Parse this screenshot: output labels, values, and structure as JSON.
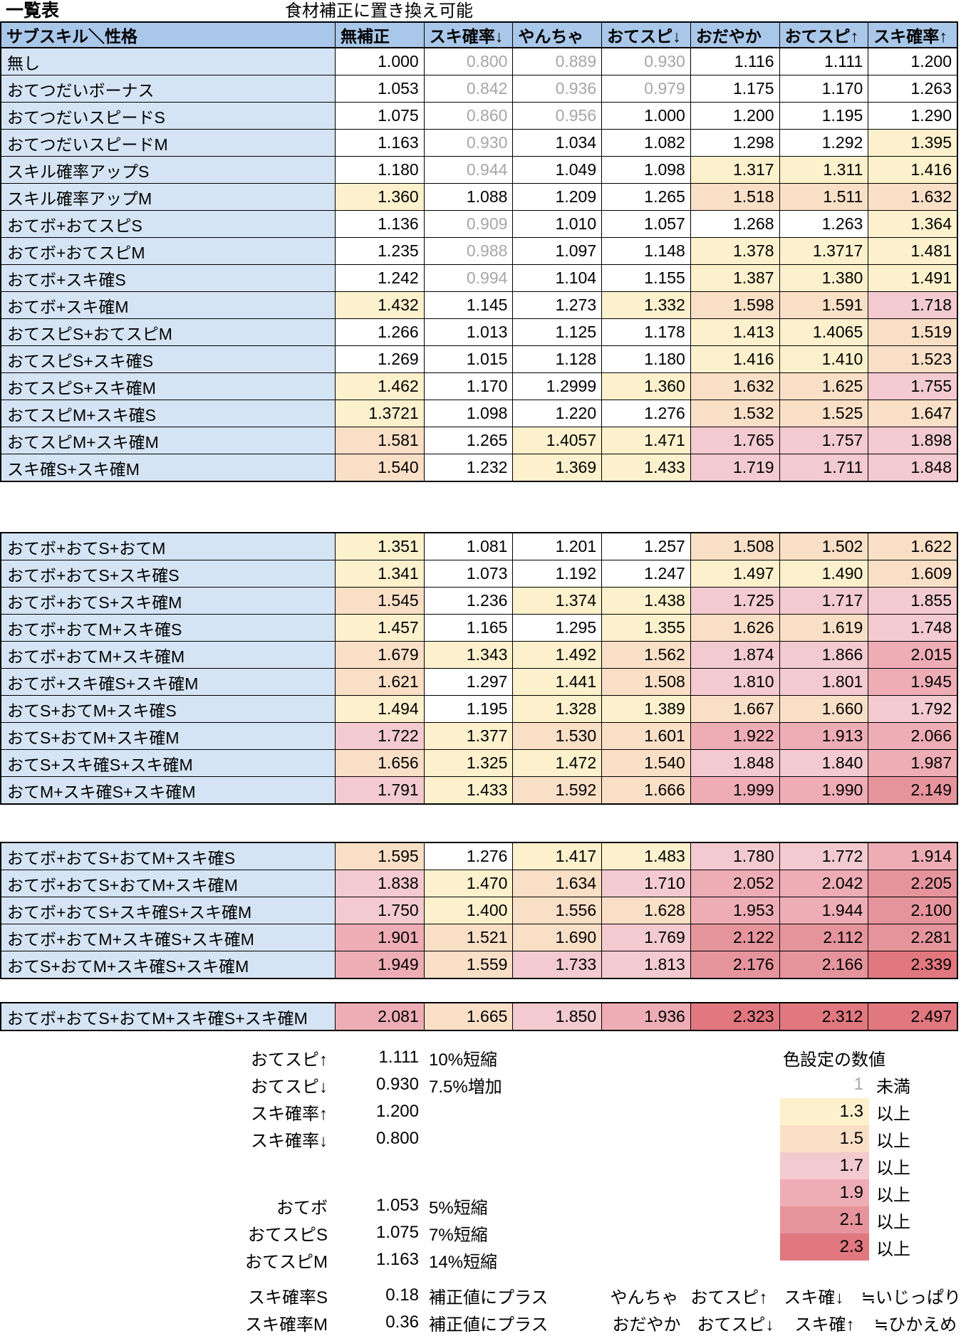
{
  "title": "一覧表",
  "subtitle": "食材補正に置き換え可能",
  "colors": {
    "header_bg": "#A9C7E9",
    "label_bg": "#D5E4F4",
    "below_one_text": "#A6A6A6",
    "ge13": "#FCF1CC",
    "ge15": "#F9DFC6",
    "ge17": "#F3CACF",
    "ge19": "#EEADB5",
    "ge21": "#E6949C",
    "ge23": "#E1777F"
  },
  "thresholds": {
    "gray_below": 1,
    "bands": [
      {
        "min": 2.3,
        "color": "ge23"
      },
      {
        "min": 2.1,
        "color": "ge21"
      },
      {
        "min": 1.9,
        "color": "ge19"
      },
      {
        "min": 1.7,
        "color": "ge17"
      },
      {
        "min": 1.5,
        "color": "ge15"
      },
      {
        "min": 1.3,
        "color": "ge13"
      }
    ]
  },
  "table": {
    "header": [
      "サブスキル＼性格",
      "無補正",
      "スキ確率↓",
      "やんちゃ",
      "おてスピ↓",
      "おだやか",
      "おてスピ↑",
      "スキ確率↑"
    ],
    "blocks": [
      [
        {
          "label": "無し",
          "values": [
            "1.000",
            "0.800",
            "0.889",
            "0.930",
            "1.116",
            "1.111",
            "1.200"
          ]
        },
        {
          "label": "おてつだいボーナス",
          "values": [
            "1.053",
            "0.842",
            "0.936",
            "0.979",
            "1.175",
            "1.170",
            "1.263"
          ]
        },
        {
          "label": "おてつだいスピードS",
          "values": [
            "1.075",
            "0.860",
            "0.956",
            "1.000",
            "1.200",
            "1.195",
            "1.290"
          ]
        },
        {
          "label": "おてつだいスピードM",
          "values": [
            "1.163",
            "0.930",
            "1.034",
            "1.082",
            "1.298",
            "1.292",
            "1.395"
          ]
        },
        {
          "label": "スキル確率アップS",
          "values": [
            "1.180",
            "0.944",
            "1.049",
            "1.098",
            "1.317",
            "1.311",
            "1.416"
          ]
        },
        {
          "label": "スキル確率アップM",
          "values": [
            "1.360",
            "1.088",
            "1.209",
            "1.265",
            "1.518",
            "1.511",
            "1.632"
          ]
        },
        {
          "label": "おてボ+おてスピS",
          "values": [
            "1.136",
            "0.909",
            "1.010",
            "1.057",
            "1.268",
            "1.263",
            "1.364"
          ]
        },
        {
          "label": "おてボ+おてスピM",
          "values": [
            "1.235",
            "0.988",
            "1.097",
            "1.148",
            "1.378",
            "1.3717",
            "1.481"
          ]
        },
        {
          "label": "おてボ+スキ確S",
          "values": [
            "1.242",
            "0.994",
            "1.104",
            "1.155",
            "1.387",
            "1.380",
            "1.491"
          ]
        },
        {
          "label": "おてボ+スキ確M",
          "values": [
            "1.432",
            "1.145",
            "1.273",
            "1.332",
            "1.598",
            "1.591",
            "1.718"
          ]
        },
        {
          "label": "おてスピS+おてスピM",
          "values": [
            "1.266",
            "1.013",
            "1.125",
            "1.178",
            "1.413",
            "1.4065",
            "1.519"
          ]
        },
        {
          "label": "おてスピS+スキ確S",
          "values": [
            "1.269",
            "1.015",
            "1.128",
            "1.180",
            "1.416",
            "1.410",
            "1.523"
          ]
        },
        {
          "label": "おてスピS+スキ確M",
          "values": [
            "1.462",
            "1.170",
            "1.2999",
            "1.360",
            "1.632",
            "1.625",
            "1.755"
          ]
        },
        {
          "label": "おてスピM+スキ確S",
          "values": [
            "1.3721",
            "1.098",
            "1.220",
            "1.276",
            "1.532",
            "1.525",
            "1.647"
          ]
        },
        {
          "label": "おてスピM+スキ確M",
          "values": [
            "1.581",
            "1.265",
            "1.4057",
            "1.471",
            "1.765",
            "1.757",
            "1.898"
          ]
        },
        {
          "label": "スキ確S+スキ確M",
          "values": [
            "1.540",
            "1.232",
            "1.369",
            "1.433",
            "1.719",
            "1.711",
            "1.848"
          ]
        }
      ],
      [
        {
          "label": "おてボ+おてS+おてM",
          "values": [
            "1.351",
            "1.081",
            "1.201",
            "1.257",
            "1.508",
            "1.502",
            "1.622"
          ]
        },
        {
          "label": "おてボ+おてS+スキ確S",
          "values": [
            "1.341",
            "1.073",
            "1.192",
            "1.247",
            "1.497",
            "1.490",
            "1.609"
          ]
        },
        {
          "label": "おてボ+おてS+スキ確M",
          "values": [
            "1.545",
            "1.236",
            "1.374",
            "1.438",
            "1.725",
            "1.717",
            "1.855"
          ]
        },
        {
          "label": "おてボ+おてM+スキ確S",
          "values": [
            "1.457",
            "1.165",
            "1.295",
            "1.355",
            "1.626",
            "1.619",
            "1.748"
          ]
        },
        {
          "label": "おてボ+おてM+スキ確M",
          "values": [
            "1.679",
            "1.343",
            "1.492",
            "1.562",
            "1.874",
            "1.866",
            "2.015"
          ]
        },
        {
          "label": "おてボ+スキ確S+スキ確M",
          "values": [
            "1.621",
            "1.297",
            "1.441",
            "1.508",
            "1.810",
            "1.801",
            "1.945"
          ]
        },
        {
          "label": "おてS+おてM+スキ確S",
          "values": [
            "1.494",
            "1.195",
            "1.328",
            "1.389",
            "1.667",
            "1.660",
            "1.792"
          ]
        },
        {
          "label": "おてS+おてM+スキ確M",
          "values": [
            "1.722",
            "1.377",
            "1.530",
            "1.601",
            "1.922",
            "1.913",
            "2.066"
          ]
        },
        {
          "label": "おてS+スキ確S+スキ確M",
          "values": [
            "1.656",
            "1.325",
            "1.472",
            "1.540",
            "1.848",
            "1.840",
            "1.987"
          ]
        },
        {
          "label": "おてM+スキ確S+スキ確M",
          "values": [
            "1.791",
            "1.433",
            "1.592",
            "1.666",
            "1.999",
            "1.990",
            "2.149"
          ]
        }
      ],
      [
        {
          "label": "おてボ+おてS+おてM+スキ確S",
          "values": [
            "1.595",
            "1.276",
            "1.417",
            "1.483",
            "1.780",
            "1.772",
            "1.914"
          ]
        },
        {
          "label": "おてボ+おてS+おてM+スキ確M",
          "values": [
            "1.838",
            "1.470",
            "1.634",
            "1.710",
            "2.052",
            "2.042",
            "2.205"
          ]
        },
        {
          "label": "おてボ+おてS+スキ確S+スキ確M",
          "values": [
            "1.750",
            "1.400",
            "1.556",
            "1.628",
            "1.953",
            "1.944",
            "2.100"
          ]
        },
        {
          "label": "おてボ+おてM+スキ確S+スキ確M",
          "values": [
            "1.901",
            "1.521",
            "1.690",
            "1.769",
            "2.122",
            "2.112",
            "2.281"
          ]
        },
        {
          "label": "おてS+おてM+スキ確S+スキ確M",
          "values": [
            "1.949",
            "1.559",
            "1.733",
            "1.813",
            "2.176",
            "2.166",
            "2.339"
          ]
        }
      ],
      [
        {
          "label": "おてボ+おてS+おてM+スキ確S+スキ確M",
          "values": [
            "2.081",
            "1.665",
            "1.850",
            "1.936",
            "2.323",
            "2.312",
            "2.497"
          ]
        }
      ]
    ]
  },
  "legend_multipliers": {
    "group1": [
      {
        "label": "おてスピ↑",
        "value": "1.111",
        "note": "10%短縮"
      },
      {
        "label": "おてスピ↓",
        "value": "0.930",
        "note": "7.5%増加"
      },
      {
        "label": "スキ確率↑",
        "value": "1.200",
        "note": ""
      },
      {
        "label": "スキ確率↓",
        "value": "0.800",
        "note": ""
      }
    ],
    "group2": [
      {
        "label": "おてボ",
        "value": "1.053",
        "note": "5%短縮"
      },
      {
        "label": "おてスピS",
        "value": "1.075",
        "note": "7%短縮"
      },
      {
        "label": "おてスピM",
        "value": "1.163",
        "note": "14%短縮"
      }
    ],
    "group3": [
      {
        "label": "スキ確率S",
        "value": "0.18",
        "note": "補正値にプラス"
      },
      {
        "label": "スキ確率M",
        "value": "0.36",
        "note": "補正値にプラス"
      }
    ]
  },
  "color_legend": {
    "title": "色設定の数値",
    "rows": [
      {
        "value": "1",
        "label": "未満",
        "band": null
      },
      {
        "value": "1.3",
        "label": "以上",
        "band": "ge13"
      },
      {
        "value": "1.5",
        "label": "以上",
        "band": "ge15"
      },
      {
        "value": "1.7",
        "label": "以上",
        "band": "ge17"
      },
      {
        "value": "1.9",
        "label": "以上",
        "band": "ge19"
      },
      {
        "value": "2.1",
        "label": "以上",
        "band": "ge21"
      },
      {
        "value": "2.3",
        "label": "以上",
        "band": "ge23"
      }
    ]
  },
  "nature_notes": [
    {
      "nature": "やんちゃ",
      "effect1": "おてスピ↑",
      "effect2": "スキ確↓",
      "approx": "≒いじっぱり"
    },
    {
      "nature": "おだやか",
      "effect1": "おてスピ↓",
      "effect2": "スキ確↑",
      "approx": "≒ひかえめ"
    }
  ]
}
